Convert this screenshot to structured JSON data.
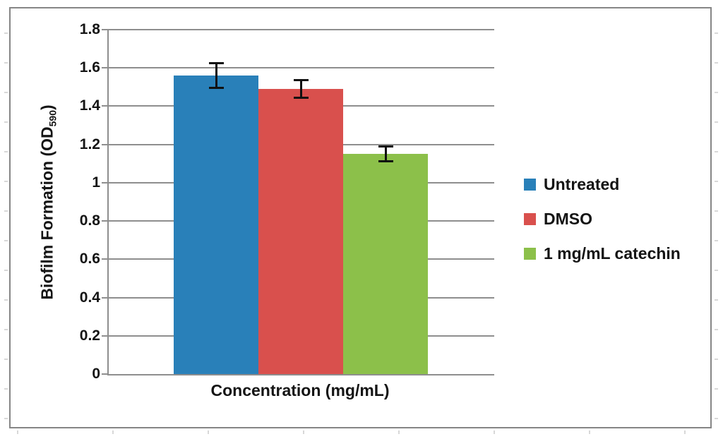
{
  "chart_data": {
    "type": "bar",
    "title": "",
    "xlabel": "Concentration (mg/mL)",
    "ylabel": "Biofilm Formation (OD590)",
    "ylabel_parts": {
      "main": "Biofilm Formation (OD",
      "sub": "590",
      "close": ")"
    },
    "ylim": [
      0,
      1.8
    ],
    "ytick_step": 0.2,
    "ytick_labels": [
      "0",
      "0.2",
      "0.4",
      "0.6",
      "0.8",
      "1",
      "1.2",
      "1.4",
      "1.6",
      "1.8"
    ],
    "grid": true,
    "legend_position": "right",
    "categories": [
      "Untreated",
      "DMSO",
      "1 mg/mL catechin"
    ],
    "series": [
      {
        "name": "Untreated",
        "value": 1.56,
        "error": 0.07,
        "color": "#2980B9"
      },
      {
        "name": "DMSO",
        "value": 1.49,
        "error": 0.05,
        "color": "#D9504D"
      },
      {
        "name": "1 mg/mL catechin",
        "value": 1.15,
        "error": 0.045,
        "color": "#8CC04A"
      }
    ],
    "colors": {
      "gridline": "#8e8e8e",
      "axis": "#8e8e8e",
      "frame_border": "#868686",
      "error_bar": "#111111",
      "text": "#141414"
    }
  }
}
